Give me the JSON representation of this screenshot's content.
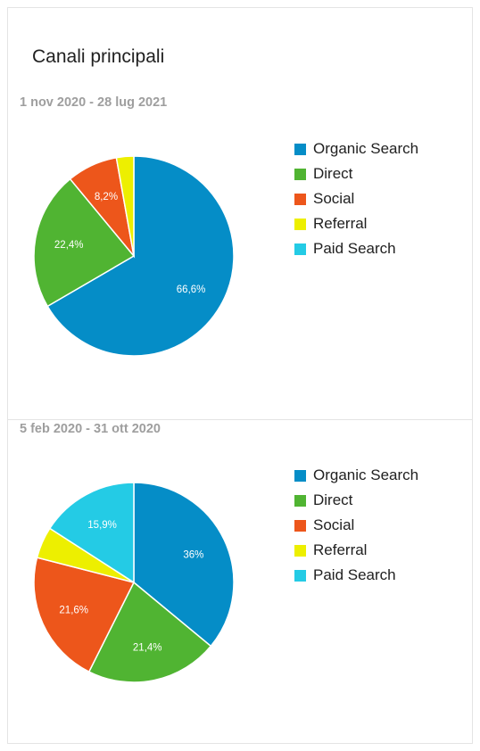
{
  "title": "Canali principali",
  "channels": [
    {
      "name": "Organic Search",
      "color": "#058dc7"
    },
    {
      "name": "Direct",
      "color": "#50b432"
    },
    {
      "name": "Social",
      "color": "#ed561b"
    },
    {
      "name": "Referral",
      "color": "#edef00"
    },
    {
      "name": "Paid Search",
      "color": "#24cbe5"
    }
  ],
  "chart_data": [
    {
      "type": "pie",
      "title": "1 nov 2020 - 28 lug 2021",
      "categories": [
        "Organic Search",
        "Direct",
        "Social",
        "Referral",
        "Paid Search"
      ],
      "values": [
        66.6,
        22.4,
        8.2,
        2.8,
        0
      ],
      "data_labels": [
        "66,6%",
        "22,4%",
        "8,2%",
        "",
        ""
      ],
      "legend": "right"
    },
    {
      "type": "pie",
      "title": "5 feb 2020 - 31 ott 2020",
      "categories": [
        "Organic Search",
        "Direct",
        "Social",
        "Referral",
        "Paid Search"
      ],
      "values": [
        36,
        21.4,
        21.6,
        5.1,
        15.9
      ],
      "data_labels": [
        "36%",
        "21,4%",
        "21,6%",
        "",
        "15,9%"
      ],
      "legend": "right"
    }
  ]
}
